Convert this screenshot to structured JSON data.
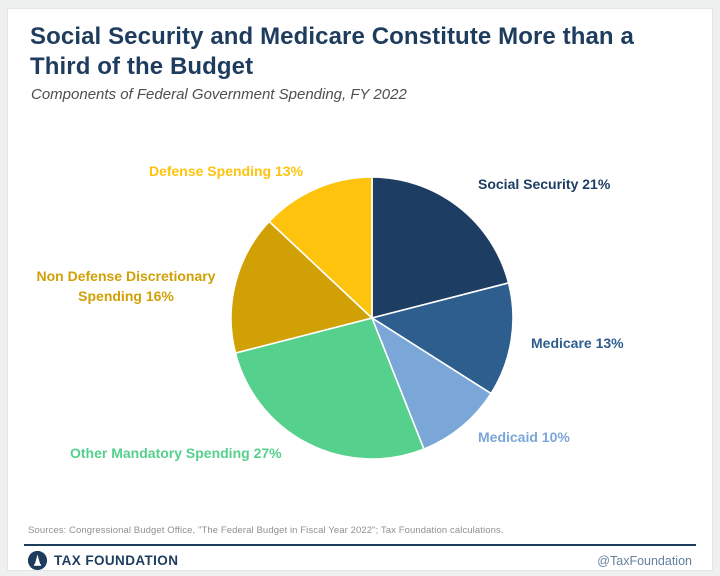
{
  "header": {
    "title": "Social Security and Medicare Constitute More than a Third of the Budget",
    "subtitle": "Components of Federal Government Spending, FY 2022"
  },
  "chart_data": {
    "type": "pie",
    "title": "Components of Federal Government Spending, FY 2022",
    "unit": "percent",
    "start_angle_deg": 0,
    "direction": "clockwise",
    "legend_position": "outside-labels",
    "slices": [
      {
        "name": "Social Security",
        "value": 21,
        "color": "#1e3d63",
        "label": "Social Security 21%"
      },
      {
        "name": "Medicare",
        "value": 13,
        "color": "#2e5e8e",
        "label": "Medicare 13%"
      },
      {
        "name": "Medicaid",
        "value": 10,
        "color": "#7aa6d8",
        "label": "Medicaid 10%"
      },
      {
        "name": "Other Mandatory Spending",
        "value": 27,
        "color": "#55d08d",
        "label": "Other Mandatory Spending 27%"
      },
      {
        "name": "Non Defense Discretionary Spending",
        "value": 16,
        "color": "#d0a005",
        "label": "Non Defense Discretionary Spending 16%"
      },
      {
        "name": "Defense Spending",
        "value": 13,
        "color": "#fdc30d",
        "label": "Defense Spending 13%"
      }
    ]
  },
  "footer": {
    "sources": "Sources: Congressional Budget Office, \"The Federal Budget in Fiscal Year 2022\"; Tax Foundation calculations.",
    "brand": "TAX FOUNDATION",
    "handle": "@TaxFoundation"
  },
  "colors": {
    "title": "#1e3c5e",
    "divider": "#1e3c5e",
    "page_background": "#eef0f0",
    "card_background": "#ffffff"
  }
}
